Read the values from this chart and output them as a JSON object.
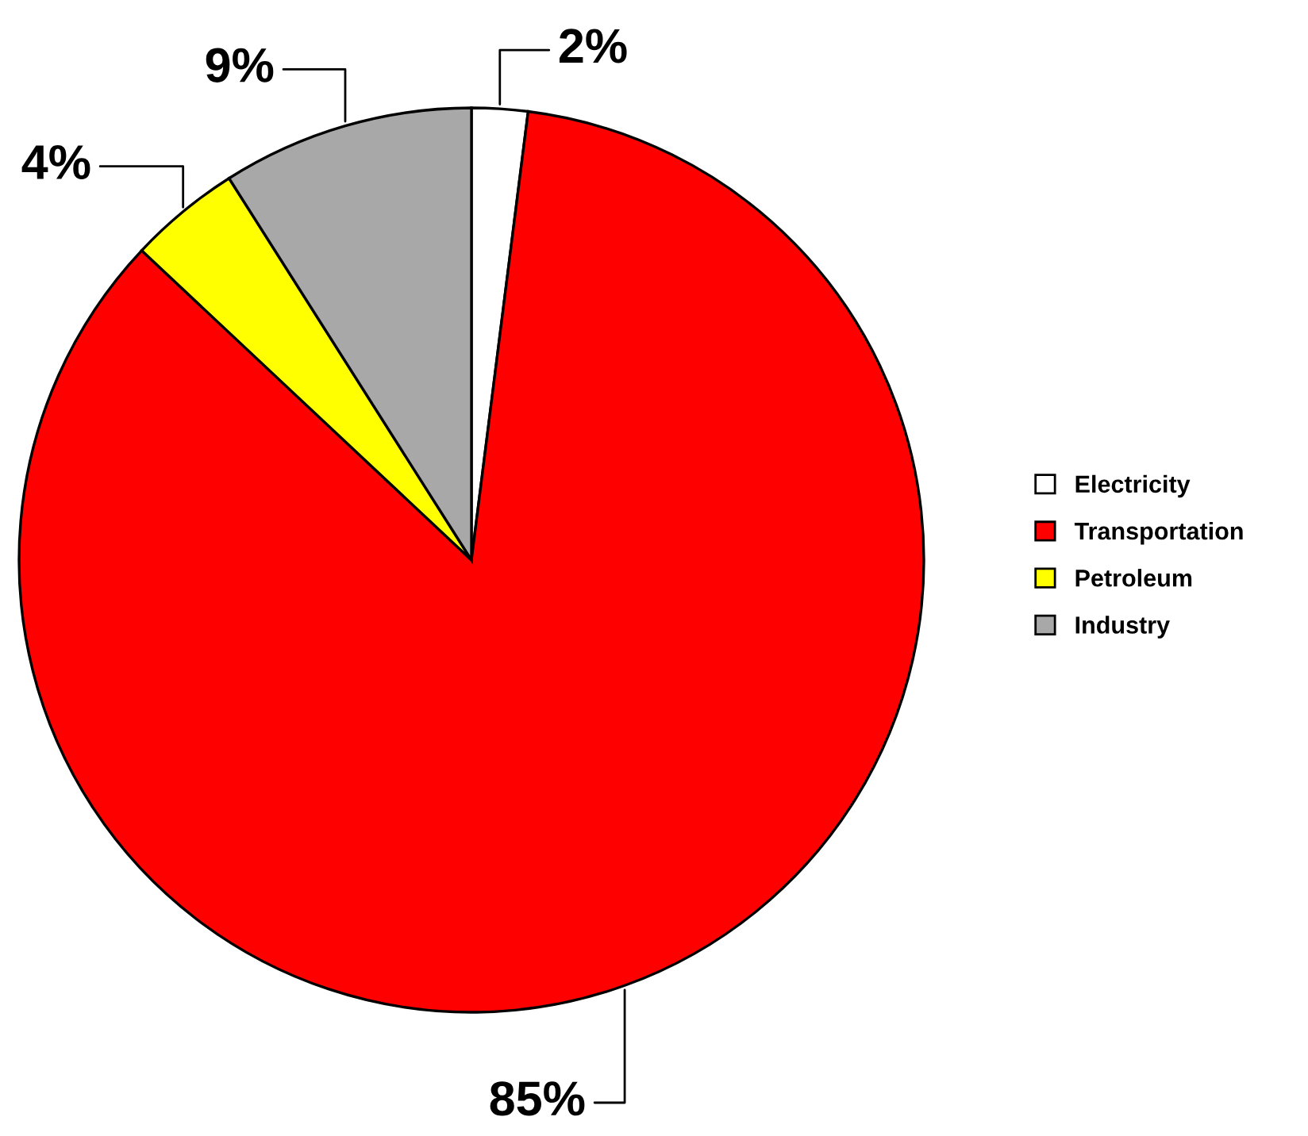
{
  "chart_data": {
    "type": "pie",
    "categories": [
      "Electricity",
      "Transportation",
      "Petroleum",
      "Industry"
    ],
    "values": [
      2,
      85,
      4,
      9
    ],
    "colors": [
      "#ffffff",
      "#ff0000",
      "#ffff00",
      "#a8a8a8"
    ],
    "value_labels": [
      "2%",
      "85%",
      "4%",
      "9%"
    ],
    "legend": "right"
  }
}
